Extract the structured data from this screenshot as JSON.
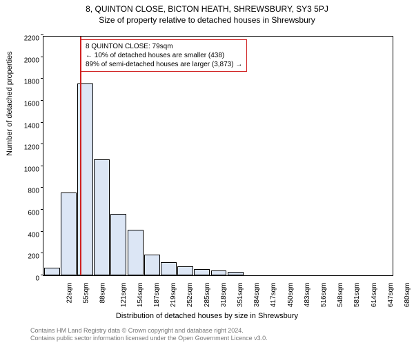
{
  "header": {
    "address": "8, QUINTON CLOSE, BICTON HEATH, SHREWSBURY, SY3 5PJ",
    "subtitle": "Size of property relative to detached houses in Shrewsbury"
  },
  "chart": {
    "type": "histogram",
    "ylabel": "Number of detached properties",
    "xlabel": "Distribution of detached houses by size in Shrewsbury",
    "ylim": [
      0,
      2200
    ],
    "ytick_step": 200,
    "xticks": [
      "22sqm",
      "55sqm",
      "88sqm",
      "121sqm",
      "154sqm",
      "187sqm",
      "219sqm",
      "252sqm",
      "285sqm",
      "318sqm",
      "351sqm",
      "384sqm",
      "417sqm",
      "450sqm",
      "483sqm",
      "516sqm",
      "548sqm",
      "581sqm",
      "614sqm",
      "647sqm",
      "680sqm"
    ],
    "bars": [
      {
        "x_index": 0,
        "value": 70
      },
      {
        "x_index": 1,
        "value": 760
      },
      {
        "x_index": 2,
        "value": 1760
      },
      {
        "x_index": 3,
        "value": 1060
      },
      {
        "x_index": 4,
        "value": 560
      },
      {
        "x_index": 5,
        "value": 420
      },
      {
        "x_index": 6,
        "value": 190
      },
      {
        "x_index": 7,
        "value": 120
      },
      {
        "x_index": 8,
        "value": 80
      },
      {
        "x_index": 9,
        "value": 60
      },
      {
        "x_index": 10,
        "value": 45
      },
      {
        "x_index": 11,
        "value": 30
      },
      {
        "x_index": 12,
        "value": 0
      },
      {
        "x_index": 13,
        "value": 0
      },
      {
        "x_index": 14,
        "value": 0
      },
      {
        "x_index": 15,
        "value": 0
      },
      {
        "x_index": 16,
        "value": 0
      },
      {
        "x_index": 17,
        "value": 0
      },
      {
        "x_index": 18,
        "value": 0
      },
      {
        "x_index": 19,
        "value": 0
      }
    ],
    "bar_fill": "#dce6f5",
    "bar_stroke": "#000000",
    "background": "#ffffff",
    "marker": {
      "x_value_sqm": 79,
      "x_range": [
        22,
        680
      ],
      "color": "#d02020"
    },
    "annotation": {
      "line1": "8 QUINTON CLOSE: 79sqm",
      "line2": "← 10% of detached houses are smaller (438)",
      "line3": "89% of semi-detached houses are larger (3,873) →",
      "border_color": "#d02020",
      "fontsize": 10
    }
  },
  "credits": {
    "line1": "Contains HM Land Registry data © Crown copyright and database right 2024.",
    "line2": "Contains public sector information licensed under the Open Government Licence v3.0."
  }
}
